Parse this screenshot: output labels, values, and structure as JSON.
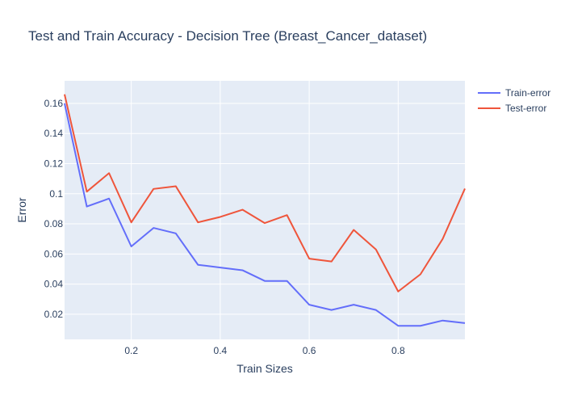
{
  "chart_data": {
    "type": "line",
    "title": "Test and Train Accuracy - Decision Tree (Breast_Cancer_dataset)",
    "xlabel": "Train Sizes",
    "ylabel": "Error",
    "xlim": [
      0.05,
      0.95
    ],
    "ylim": [
      0.0033,
      0.175
    ],
    "x_ticks": [
      0.2,
      0.4,
      0.6,
      0.8
    ],
    "x_tick_labels": [
      "0.2",
      "0.4",
      "0.6",
      "0.8"
    ],
    "y_ticks": [
      0.02,
      0.04,
      0.06,
      0.08,
      0.1,
      0.12,
      0.14,
      0.16
    ],
    "y_tick_labels": [
      "0.02",
      "0.04",
      "0.06",
      "0.08",
      "0.1",
      "0.12",
      "0.14",
      "0.16"
    ],
    "grid": true,
    "legend_position": "top-right",
    "x": [
      0.05,
      0.1,
      0.15,
      0.2,
      0.25,
      0.3,
      0.35,
      0.4,
      0.45,
      0.5,
      0.55,
      0.6,
      0.65,
      0.7,
      0.75,
      0.8,
      0.85,
      0.9,
      0.95
    ],
    "series": [
      {
        "name": "Train-error",
        "color": "#636efa",
        "values": [
          0.16,
          0.0915,
          0.0968,
          0.065,
          0.0773,
          0.0737,
          0.0528,
          0.051,
          0.0492,
          0.0421,
          0.0421,
          0.0263,
          0.0228,
          0.0263,
          0.0228,
          0.0123,
          0.0123,
          0.0158,
          0.0141
        ]
      },
      {
        "name": "Test-error",
        "color": "#ef553b",
        "values": [
          0.166,
          0.1014,
          0.1137,
          0.081,
          0.1032,
          0.105,
          0.081,
          0.0846,
          0.0894,
          0.0805,
          0.0858,
          0.0569,
          0.055,
          0.076,
          0.063,
          0.0351,
          0.0465,
          0.07,
          0.1034
        ]
      }
    ]
  }
}
